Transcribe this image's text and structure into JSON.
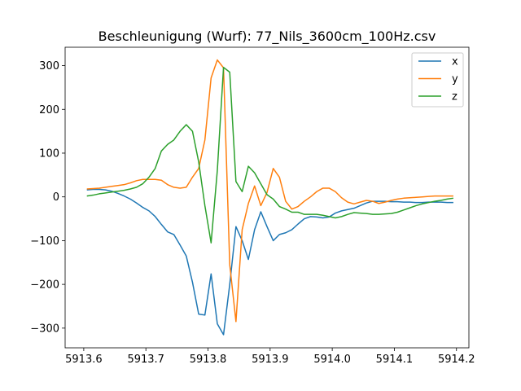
{
  "chart_data": {
    "type": "line",
    "title": "Beschleunigung (Wurf): 77_Nils_3600cm_100Hz.csv",
    "xlabel": "",
    "ylabel": "",
    "xlim": [
      5913.57,
      5914.22
    ],
    "ylim": [
      -345,
      342
    ],
    "xticks": [
      5913.6,
      5913.7,
      5913.8,
      5913.9,
      5914.0,
      5914.1,
      5914.2
    ],
    "xtick_labels": [
      "5913.6",
      "5913.7",
      "5913.8",
      "5913.9",
      "5914.0",
      "5914.1",
      "5914.2"
    ],
    "yticks": [
      -300,
      -200,
      -100,
      0,
      100,
      200,
      300
    ],
    "ytick_labels": [
      "−300",
      "−200",
      "−100",
      "0",
      "100",
      "200",
      "300"
    ],
    "grid": false,
    "legend_position": "top-right",
    "series": [
      {
        "name": "x",
        "color": "#1f77b4",
        "x": [
          5913.605,
          5913.615,
          5913.625,
          5913.635,
          5913.645,
          5913.655,
          5913.665,
          5913.675,
          5913.685,
          5913.695,
          5913.705,
          5913.715,
          5913.725,
          5913.735,
          5913.745,
          5913.755,
          5913.765,
          5913.775,
          5913.785,
          5913.795,
          5913.805,
          5913.815,
          5913.825,
          5913.835,
          5913.845,
          5913.855,
          5913.865,
          5913.875,
          5913.885,
          5913.895,
          5913.905,
          5913.915,
          5913.925,
          5913.935,
          5913.945,
          5913.955,
          5913.965,
          5913.975,
          5913.985,
          5913.995,
          5914.005,
          5914.015,
          5914.025,
          5914.035,
          5914.045,
          5914.055,
          5914.065,
          5914.075,
          5914.085,
          5914.095,
          5914.105,
          5914.115,
          5914.125,
          5914.135,
          5914.145,
          5914.155,
          5914.165,
          5914.175,
          5914.185,
          5914.195
        ],
        "y": [
          16,
          17,
          17,
          16,
          13,
          8,
          2,
          -5,
          -14,
          -24,
          -32,
          -45,
          -63,
          -80,
          -86,
          -110,
          -135,
          -195,
          -268,
          -270,
          -176,
          -290,
          -315,
          -200,
          -68,
          -100,
          -143,
          -75,
          -34,
          -68,
          -100,
          -86,
          -82,
          -75,
          -62,
          -50,
          -45,
          -46,
          -48,
          -46,
          -37,
          -32,
          -29,
          -26,
          -20,
          -14,
          -10,
          -10,
          -10,
          -11,
          -11,
          -12,
          -12,
          -13,
          -13,
          -12,
          -12,
          -12,
          -13,
          -13
        ]
      },
      {
        "name": "y",
        "color": "#ff7f0e",
        "x": [
          5913.605,
          5913.615,
          5913.625,
          5913.635,
          5913.645,
          5913.655,
          5913.665,
          5913.675,
          5913.685,
          5913.695,
          5913.705,
          5913.715,
          5913.725,
          5913.735,
          5913.745,
          5913.755,
          5913.765,
          5913.775,
          5913.785,
          5913.795,
          5913.805,
          5913.815,
          5913.825,
          5913.835,
          5913.845,
          5913.855,
          5913.865,
          5913.875,
          5913.885,
          5913.895,
          5913.905,
          5913.915,
          5913.925,
          5913.935,
          5913.945,
          5913.955,
          5913.965,
          5913.975,
          5913.985,
          5913.995,
          5914.005,
          5914.015,
          5914.025,
          5914.035,
          5914.045,
          5914.055,
          5914.065,
          5914.075,
          5914.085,
          5914.095,
          5914.105,
          5914.115,
          5914.125,
          5914.135,
          5914.145,
          5914.155,
          5914.165,
          5914.175,
          5914.185,
          5914.195
        ],
        "y": [
          18,
          19,
          20,
          22,
          24,
          26,
          28,
          32,
          37,
          40,
          40,
          40,
          38,
          28,
          22,
          20,
          22,
          45,
          65,
          130,
          272,
          313,
          295,
          -155,
          -285,
          -75,
          -15,
          25,
          -20,
          10,
          65,
          45,
          -10,
          -28,
          -22,
          -10,
          0,
          12,
          20,
          20,
          12,
          -2,
          -12,
          -16,
          -12,
          -8,
          -10,
          -15,
          -12,
          -8,
          -5,
          -3,
          -2,
          -1,
          0,
          1,
          2,
          2,
          2,
          2
        ]
      },
      {
        "name": "z",
        "color": "#2ca02c",
        "x": [
          5913.605,
          5913.615,
          5913.625,
          5913.635,
          5913.645,
          5913.655,
          5913.665,
          5913.675,
          5913.685,
          5913.695,
          5913.705,
          5913.715,
          5913.725,
          5913.735,
          5913.745,
          5913.755,
          5913.765,
          5913.775,
          5913.785,
          5913.795,
          5913.805,
          5913.815,
          5913.825,
          5913.835,
          5913.845,
          5913.855,
          5913.865,
          5913.875,
          5913.885,
          5913.895,
          5913.905,
          5913.915,
          5913.925,
          5913.935,
          5913.945,
          5913.955,
          5913.965,
          5913.975,
          5913.985,
          5913.995,
          5914.005,
          5914.015,
          5914.025,
          5914.035,
          5914.045,
          5914.055,
          5914.065,
          5914.075,
          5914.085,
          5914.095,
          5914.105,
          5914.115,
          5914.125,
          5914.135,
          5914.145,
          5914.155,
          5914.165,
          5914.175,
          5914.185,
          5914.195
        ],
        "y": [
          2,
          4,
          7,
          9,
          11,
          13,
          15,
          18,
          22,
          30,
          45,
          65,
          105,
          120,
          130,
          150,
          165,
          150,
          80,
          -20,
          -105,
          60,
          296,
          285,
          35,
          12,
          70,
          55,
          30,
          5,
          -5,
          -22,
          -28,
          -35,
          -35,
          -40,
          -40,
          -40,
          -42,
          -45,
          -48,
          -45,
          -40,
          -36,
          -37,
          -38,
          -40,
          -40,
          -39,
          -38,
          -35,
          -30,
          -25,
          -20,
          -16,
          -13,
          -10,
          -8,
          -5,
          -3
        ]
      }
    ]
  }
}
